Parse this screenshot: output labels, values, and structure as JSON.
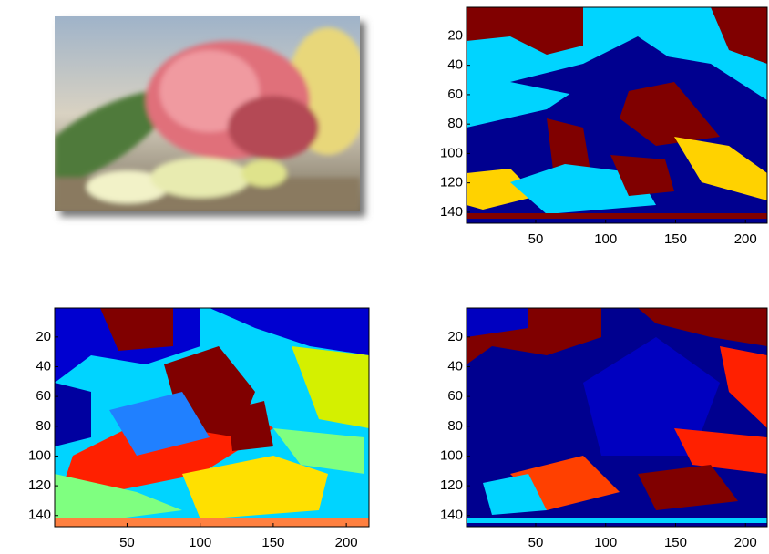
{
  "chart_data": [
    {
      "type": "photo"
    },
    {
      "type": "image",
      "xlim": [
        0.5,
        215.5
      ],
      "ylim": [
        0.5,
        147.5
      ],
      "xticks": [
        50,
        100,
        150,
        200
      ],
      "yticks": [
        20,
        40,
        60,
        80,
        100,
        120,
        140
      ]
    },
    {
      "type": "image",
      "xlim": [
        0.5,
        215.5
      ],
      "ylim": [
        0.5,
        147.5
      ],
      "xticks": [
        50,
        100,
        150,
        200
      ],
      "yticks": [
        20,
        40,
        60,
        80,
        100,
        120,
        140
      ]
    },
    {
      "type": "image",
      "xlim": [
        0.5,
        215.5
      ],
      "ylim": [
        0.5,
        147.5
      ],
      "xticks": [
        50,
        100,
        150,
        200
      ],
      "yticks": [
        20,
        40,
        60,
        80,
        100,
        120,
        140
      ]
    }
  ]
}
